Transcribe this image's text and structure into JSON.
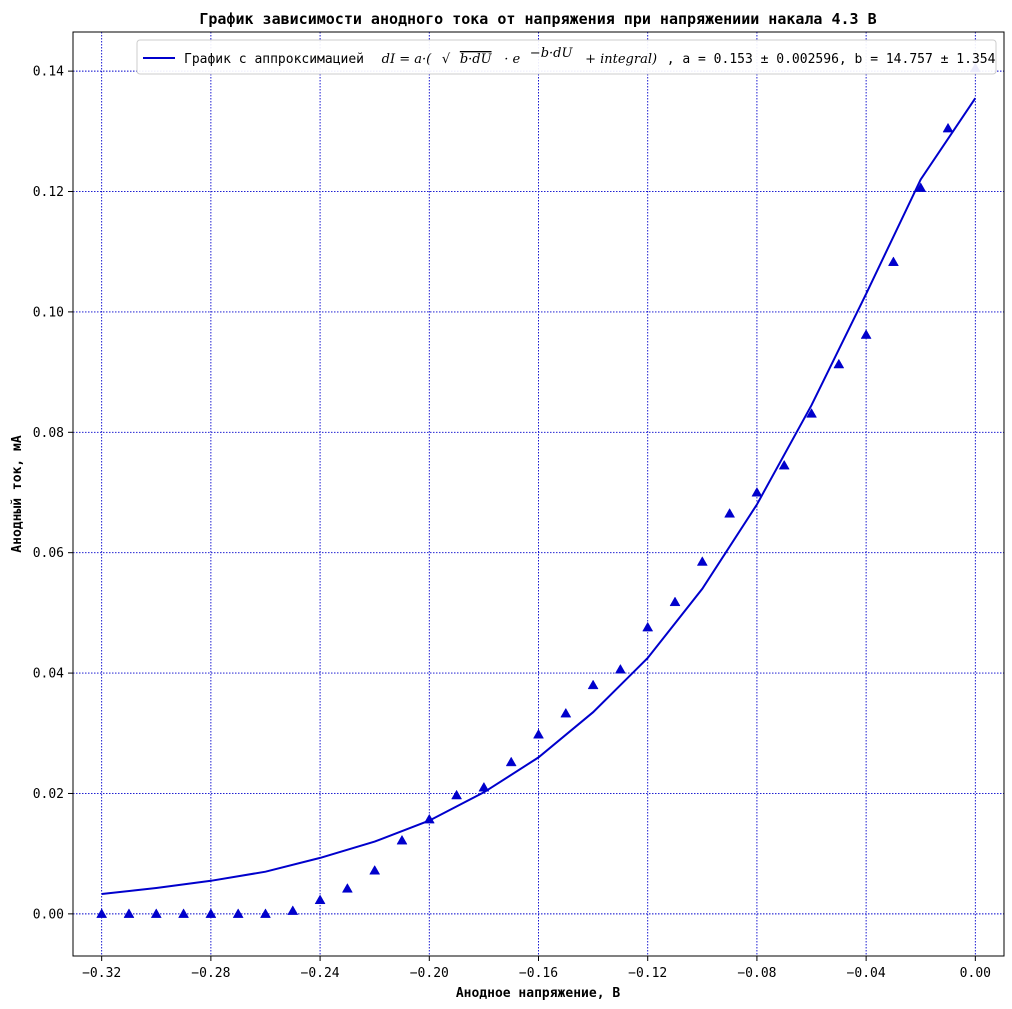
{
  "chart_data": {
    "type": "scatter",
    "title": "График зависимости анодного тока от напряжения при напряжениии накала 4.3 В",
    "xlabel": "Анодное напряжение, В",
    "ylabel": "Анодный ток, мА",
    "xlim": [
      -0.3305,
      0.0105
    ],
    "ylim": [
      -0.007,
      0.1465
    ],
    "xticks": [
      -0.32,
      -0.28,
      -0.24,
      -0.2,
      -0.16,
      -0.12,
      -0.08,
      -0.04,
      0.0
    ],
    "xtick_labels": [
      "−0.32",
      "−0.28",
      "−0.24",
      "−0.20",
      "−0.16",
      "−0.12",
      "−0.08",
      "−0.04",
      "0.00"
    ],
    "yticks": [
      0.0,
      0.02,
      0.04,
      0.06,
      0.08,
      0.1,
      0.12,
      0.14
    ],
    "ytick_labels": [
      "0.00",
      "0.02",
      "0.04",
      "0.06",
      "0.08",
      "0.10",
      "0.12",
      "0.14"
    ],
    "grid": true,
    "grid_color": "#0000cc",
    "series_color": "#0000cc",
    "legend_position": "top-right",
    "legend": {
      "prefix": "График с аппроксимацией",
      "formula_a": "dI = a·(",
      "formula_b": "b·dU",
      "formula_c": "· e",
      "formula_exp": "−b·dU",
      "formula_d": "+ integral)",
      "suffix": ", a = 0.153 ±  0.002596, b = 14.757 ± 1.354"
    },
    "measured": {
      "x": [
        -0.32,
        -0.31,
        -0.3,
        -0.29,
        -0.28,
        -0.27,
        -0.26,
        -0.25,
        -0.24,
        -0.23,
        -0.22,
        -0.21,
        -0.2,
        -0.19,
        -0.18,
        -0.17,
        -0.16,
        -0.15,
        -0.14,
        -0.13,
        -0.12,
        -0.11,
        -0.1,
        -0.09,
        -0.08,
        -0.07,
        -0.06,
        -0.05,
        -0.04,
        -0.03,
        -0.02,
        -0.01,
        0.0
      ],
      "y": [
        0.0,
        0.0,
        0.0,
        0.0,
        0.0,
        0.0,
        0.0,
        0.0005,
        0.0023,
        0.0042,
        0.0072,
        0.0122,
        0.0157,
        0.0197,
        0.021,
        0.0252,
        0.0298,
        0.0333,
        0.038,
        0.0406,
        0.0476,
        0.0518,
        0.0585,
        0.0665,
        0.07,
        0.0745,
        0.0831,
        0.0913,
        0.0962,
        0.1083,
        0.1206,
        0.1305,
        0.1405
      ]
    },
    "fit": {
      "x": [
        -0.32,
        -0.3,
        -0.28,
        -0.26,
        -0.24,
        -0.22,
        -0.2,
        -0.18,
        -0.16,
        -0.14,
        -0.12,
        -0.1,
        -0.08,
        -0.06,
        -0.04,
        -0.02,
        0.0
      ],
      "y": [
        0.0033,
        0.0043,
        0.0055,
        0.007,
        0.0093,
        0.012,
        0.0155,
        0.0202,
        0.026,
        0.0335,
        0.0425,
        0.054,
        0.068,
        0.0845,
        0.103,
        0.122,
        0.1355
      ]
    }
  }
}
